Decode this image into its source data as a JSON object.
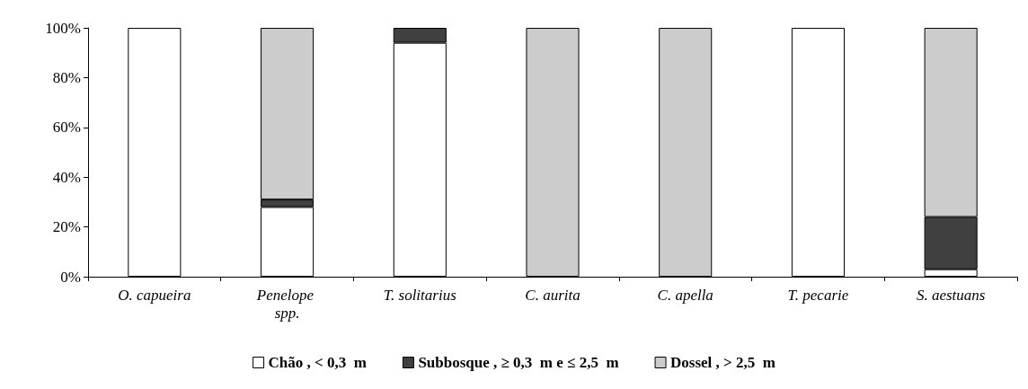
{
  "chart_data": {
    "type": "bar",
    "stacked": true,
    "categories": [
      "O. capueira",
      "Penelope spp.",
      "T. solitarius",
      "C. aurita",
      "C. apella",
      "T. pecarie",
      "S. aestuans"
    ],
    "series": [
      {
        "name": "Chão , < 0,3  m",
        "color": "#ffffff",
        "values": [
          100,
          28,
          94,
          0,
          0,
          100,
          3
        ]
      },
      {
        "name": "Subbosque , ≥ 0,3  m e ≤ 2,5  m",
        "color": "#404040",
        "values": [
          0,
          3,
          6,
          0,
          0,
          0,
          21
        ]
      },
      {
        "name": "Dossel , > 2,5  m",
        "color": "#cccccc",
        "values": [
          0,
          69,
          0,
          100,
          100,
          0,
          76
        ]
      }
    ],
    "ylim": [
      0,
      100
    ],
    "yticks": [
      {
        "value": 0,
        "label": "0%"
      },
      {
        "value": 20,
        "label": "20%"
      },
      {
        "value": 40,
        "label": "40%"
      },
      {
        "value": 60,
        "label": "60%"
      },
      {
        "value": 80,
        "label": "80%"
      },
      {
        "value": 100,
        "label": "100%"
      }
    ],
    "grid": false,
    "legend": "bottom"
  }
}
